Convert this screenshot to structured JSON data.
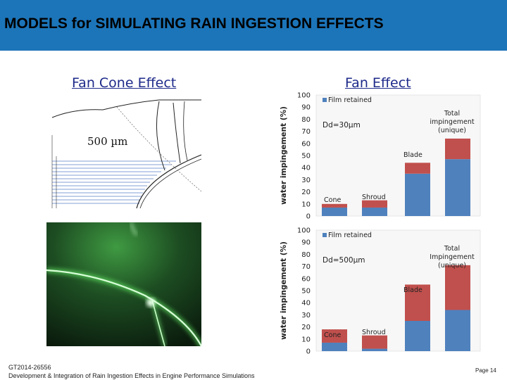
{
  "header": {
    "title": "MODELS for SIMULATING RAIN INGESTION EFFECTS"
  },
  "left": {
    "section_title": "Fan Cone Effect",
    "cone_label": "500 µm"
  },
  "right": {
    "section_title": "Fan Effect"
  },
  "chart_data": [
    {
      "type": "bar",
      "stacked": true,
      "categories": [
        "Cone",
        "Shroud",
        "Blade",
        "Total impingement (unique)"
      ],
      "series": [
        {
          "name": "Film retained",
          "values": [
            7,
            7,
            35,
            47
          ],
          "color": "#4f81bd"
        },
        {
          "values": [
            3,
            6,
            9,
            17
          ],
          "color": "#c0504d"
        }
      ],
      "ylabel": "water impingement (%)",
      "ylim": [
        0,
        100
      ],
      "yticks": [
        "0",
        "10",
        "20",
        "30",
        "40",
        "50",
        "60",
        "70",
        "80",
        "90",
        "100"
      ],
      "annotation": "Dd=30µm",
      "legend": "top-left",
      "bar_labels": [
        "Cone",
        "Shroud",
        "Blade",
        "Total",
        "impingement",
        "(unique)"
      ]
    },
    {
      "type": "bar",
      "stacked": true,
      "categories": [
        "Cone",
        "Shroud",
        "Blade",
        "Total Impingement (unique)"
      ],
      "series": [
        {
          "name": "Film retained",
          "values": [
            7,
            2,
            25,
            34
          ],
          "color": "#4f81bd"
        },
        {
          "values": [
            11,
            11,
            30,
            37
          ],
          "color": "#c0504d"
        }
      ],
      "ylabel": "water impingement (%)",
      "ylim": [
        0,
        100
      ],
      "yticks": [
        "0",
        "10",
        "20",
        "30",
        "40",
        "50",
        "60",
        "70",
        "80",
        "90",
        "100"
      ],
      "annotation": "Dd=500µm",
      "legend": "top-left",
      "bar_labels": [
        "Cone",
        "Shroud",
        "Blade",
        "Total",
        "Impingement",
        "(unique)"
      ]
    }
  ],
  "footer": {
    "code": "GT2014-26556",
    "subtitle": "Development & Integration of Rain Ingestion Effects in Engine Performance Simulations",
    "page": "Page 14"
  }
}
